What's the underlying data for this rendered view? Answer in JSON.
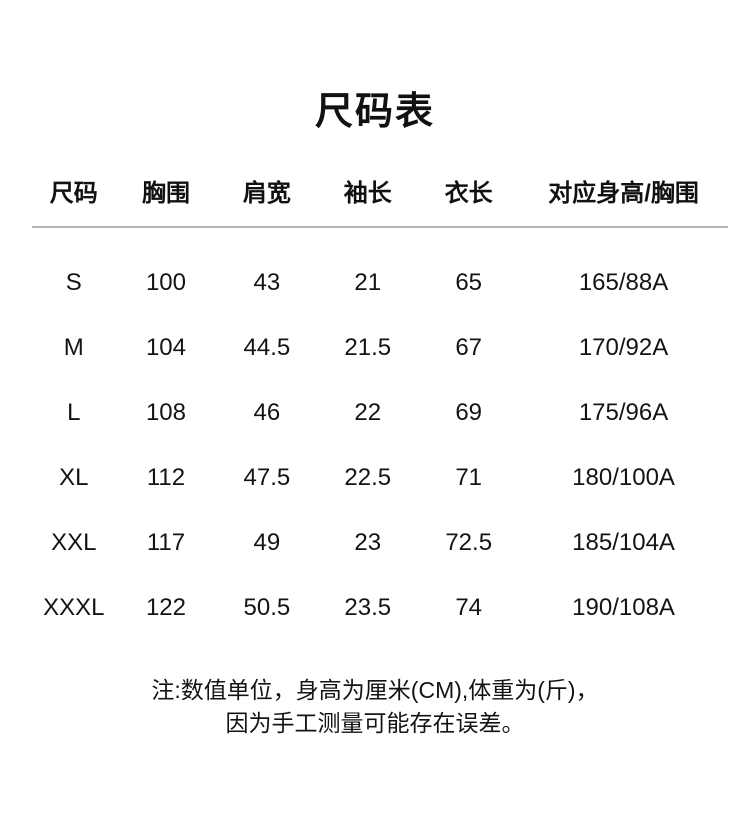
{
  "page_title": "尺码表",
  "chart_data": {
    "type": "table",
    "title": "尺码表",
    "columns": [
      "尺码",
      "胸围",
      "肩宽",
      "袖长",
      "衣长",
      "对应身高/胸围"
    ],
    "rows": [
      [
        "S",
        "100",
        "43",
        "21",
        "65",
        "165/88A"
      ],
      [
        "M",
        "104",
        "44.5",
        "21.5",
        "67",
        "170/92A"
      ],
      [
        "L",
        "108",
        "46",
        "22",
        "69",
        "175/96A"
      ],
      [
        "XL",
        "112",
        "47.5",
        "22.5",
        "71",
        "180/100A"
      ],
      [
        "XXL",
        "117",
        "49",
        "23",
        "72.5",
        "185/104A"
      ],
      [
        "XXXL",
        "122",
        "50.5",
        "23.5",
        "74",
        "190/108A"
      ]
    ],
    "note": "注:数值单位，身高为厘米(CM),体重为(斤)，因为手工测量可能存在误差。",
    "layout": {
      "grid": false,
      "header_divider": true,
      "units": "cm"
    }
  },
  "note": {
    "line1": "注:数值单位，身高为厘米(CM),体重为(斤)，",
    "line2": "因为手工测量可能存在误差。"
  },
  "colors": {
    "background": "#ffffff",
    "text": "#111111",
    "divider": "#b2b2b6"
  }
}
